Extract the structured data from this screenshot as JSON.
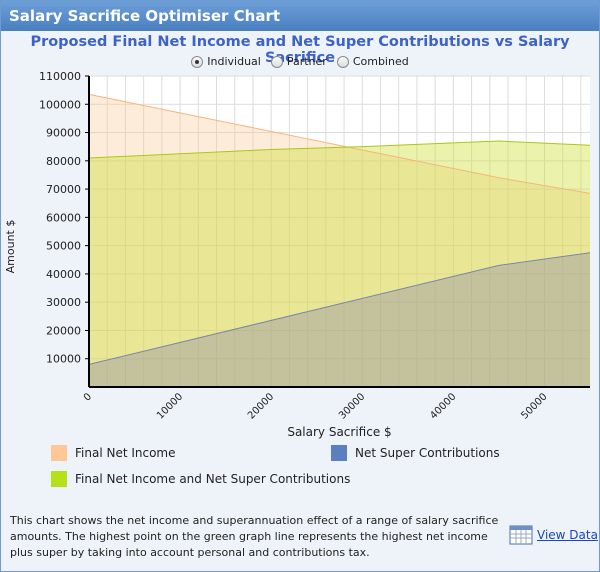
{
  "panel": {
    "title": "Salary Sacrifice Optimiser Chart"
  },
  "chart_title": "Proposed Final Net Income and Net Super Contributions vs Salary Sacrifice",
  "radio_options": [
    {
      "label": "Individual",
      "selected": true
    },
    {
      "label": "Partner",
      "selected": false
    },
    {
      "label": "Combined",
      "selected": false
    }
  ],
  "chart_data": {
    "type": "area",
    "xlabel": "Salary Sacrifice $",
    "ylabel": "Amount $",
    "xlim": [
      0,
      55000
    ],
    "ylim": [
      0,
      110000
    ],
    "x_ticks": [
      "0",
      "10000",
      "20000",
      "30000",
      "40000",
      "50000"
    ],
    "y_ticks": [
      "10000",
      "20000",
      "30000",
      "40000",
      "50000",
      "60000",
      "70000",
      "80000",
      "90000",
      "100000",
      "110000"
    ],
    "grid": true,
    "series": [
      {
        "name": "Final Net Income",
        "color": "#fdc896",
        "x": [
          0,
          45000,
          55000
        ],
        "y": [
          103500,
          74000,
          68500
        ]
      },
      {
        "name": "Net Super Contributions",
        "color": "#5b7fbf",
        "x": [
          0,
          45000,
          55000
        ],
        "y": [
          8000,
          43000,
          47500
        ]
      },
      {
        "name": "Final Net Income and Net Super Contributions",
        "color": "#b5e01a",
        "x": [
          0,
          20000,
          30000,
          45000,
          55000
        ],
        "y": [
          81000,
          84000,
          85000,
          87000,
          85500
        ]
      }
    ]
  },
  "legend": [
    {
      "label": "Final Net Income",
      "color": "#fdc896"
    },
    {
      "label": "Net Super Contributions",
      "color": "#5b7fbf"
    },
    {
      "label": "Final Net Income and Net Super Contributions",
      "color": "#b5e01a"
    }
  ],
  "description": "This chart shows the net income and superannuation effect of a range of salary sacrifice amounts. The highest point on the green graph line represents the highest net income plus super by taking into account personal and contributions tax.",
  "view_data": {
    "label": "View Data",
    "icon": "calendar-table-icon"
  }
}
